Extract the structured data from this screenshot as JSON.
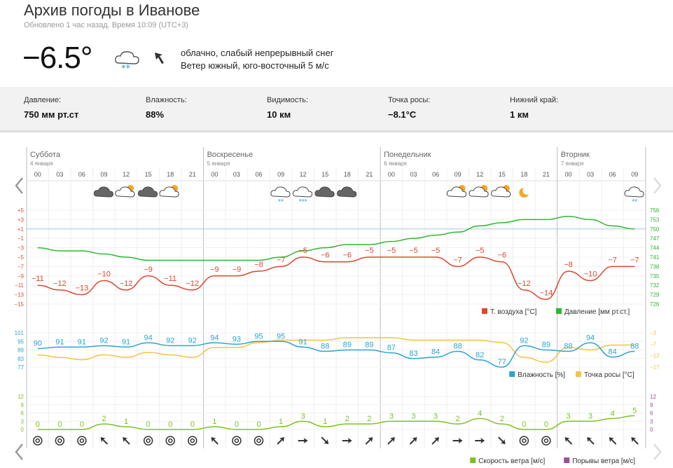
{
  "header": {
    "title": "Архив погоды в Иванове",
    "updated": "Обновлено 1 час назад. Время 10:09 (UTC+3)"
  },
  "current": {
    "temperature": "−6.5°",
    "icon": "cloud-snow-icon",
    "wind_icon": "arrow-northwest-icon",
    "condition": "облачно, слабый непрерывный снег",
    "wind": "Ветер южный, юго-восточный 5 м/с"
  },
  "stats": [
    {
      "label": "Давление:",
      "value": "750 мм рт.ст"
    },
    {
      "label": "Влажность:",
      "value": "88%"
    },
    {
      "label": "Видимость:",
      "value": "10 км"
    },
    {
      "label": "Точка росы:",
      "value": "−8.1°C"
    },
    {
      "label": "Нижний край:",
      "value": "1 км"
    }
  ],
  "days": [
    {
      "name": "Суббота",
      "date": "4 января"
    },
    {
      "name": "Воскресенье",
      "date": "5 января"
    },
    {
      "name": "Понедельник",
      "date": "6 января"
    },
    {
      "name": "Вторник",
      "date": "7 января"
    }
  ],
  "hours": [
    "00",
    "03",
    "06",
    "09",
    "12",
    "15",
    "18",
    "21",
    "00",
    "03",
    "06",
    "09",
    "12",
    "15",
    "18",
    "21",
    "00",
    "03",
    "06",
    "09",
    "12",
    "15",
    "18",
    "21",
    "00",
    "03",
    "06",
    "09"
  ],
  "weather_icons": [
    "",
    "",
    "",
    "cloud",
    "cloud-sun",
    "cloud",
    "cloud-sun",
    "",
    "",
    "",
    "",
    "cloud-snow",
    "cloud-snow-heavy",
    "cloud",
    "cloud",
    "",
    "",
    "",
    "",
    "cloud-sun",
    "cloud-sun",
    "cloud-sun",
    "moon",
    "",
    "",
    "",
    "",
    "cloud-snow"
  ],
  "colors": {
    "temperature": "#e0452d",
    "pressure": "#2db82d",
    "humidity": "#2ba3d5",
    "dew_point": "#f5c342",
    "wind_speed": "#7dc11d",
    "gusts": "#9b4f9b"
  },
  "legends": {
    "temp_chart": [
      "Т. воздуха [°C]",
      "Давление [мм рт.ст.]"
    ],
    "humidity_chart": [
      "Влажность [%]",
      "Точка росы [°C]"
    ],
    "wind_chart": [
      "Скорость ветра [м/с]",
      "Порывы ветра [м/с]"
    ]
  },
  "chart_data": [
    {
      "type": "line",
      "name": "temperature_pressure",
      "x": [
        "00",
        "03",
        "06",
        "09",
        "12",
        "15",
        "18",
        "21",
        "00",
        "03",
        "06",
        "09",
        "12",
        "15",
        "18",
        "21",
        "00",
        "03",
        "06",
        "09",
        "12",
        "15",
        "18",
        "21",
        "00",
        "03",
        "06",
        "09"
      ],
      "series": [
        {
          "name": "Т. воздуха [°C]",
          "values": [
            -11,
            -12,
            -13,
            -10,
            -12,
            -9,
            -11,
            -12,
            -9,
            -9,
            -8,
            -7,
            -5,
            -6,
            -6,
            -5,
            -5,
            -5,
            -5,
            -7,
            -5,
            -6,
            -12,
            -14,
            -8,
            -10,
            -7,
            -7
          ]
        },
        {
          "name": "Давление [мм рт.ст.]",
          "values": [
            744,
            743,
            743,
            742,
            741,
            740,
            740,
            740,
            740,
            740,
            740,
            741,
            743,
            744,
            745,
            745,
            746,
            747,
            748,
            749,
            751,
            752,
            753,
            753,
            754,
            753,
            751,
            750
          ]
        }
      ],
      "y_left_ticks": [
        "+5",
        "+3",
        "+1",
        "−1",
        "−3",
        "−5",
        "−7",
        "−9",
        "−11",
        "−13",
        "−15"
      ],
      "y_right_ticks": [
        "756",
        "753",
        "750",
        "747",
        "744",
        "741",
        "738",
        "735",
        "732",
        "729",
        "726"
      ],
      "ylim_left": [
        -15,
        5
      ],
      "ylim_right": [
        726,
        756
      ]
    },
    {
      "type": "line",
      "name": "humidity_dewpoint",
      "x": [
        "00",
        "03",
        "06",
        "09",
        "12",
        "15",
        "18",
        "21",
        "00",
        "03",
        "06",
        "09",
        "12",
        "15",
        "18",
        "21",
        "00",
        "03",
        "06",
        "09",
        "12",
        "15",
        "18",
        "21",
        "00",
        "03",
        "06",
        "09"
      ],
      "series": [
        {
          "name": "Влажность [%]",
          "values": [
            90,
            91,
            91,
            92,
            91,
            94,
            92,
            92,
            94,
            93,
            95,
            95,
            91,
            88,
            89,
            89,
            87,
            83,
            84,
            88,
            82,
            77,
            92,
            89,
            88,
            94,
            84,
            88
          ]
        },
        {
          "name": "Точка росы [°C]",
          "values": [
            -12,
            -13,
            -14,
            -12,
            -13,
            -11,
            -12,
            -13,
            -9,
            -9,
            -7,
            -6,
            -6,
            -6,
            -5,
            -5,
            -5,
            -6,
            -6,
            -6,
            -6,
            -7,
            -13,
            -15,
            -9,
            -10,
            -8,
            -8
          ]
        }
      ],
      "y_left_ticks": [
        "101",
        "95",
        "89",
        "83",
        "77"
      ],
      "y_right_ticks": [
        "−3",
        "−7",
        "−12",
        "−17"
      ],
      "ylim_left": [
        77,
        101
      ],
      "ylim_right": [
        -17,
        -3
      ]
    },
    {
      "type": "line",
      "name": "wind",
      "x": [
        "00",
        "03",
        "06",
        "09",
        "12",
        "15",
        "18",
        "21",
        "00",
        "03",
        "06",
        "09",
        "12",
        "15",
        "18",
        "21",
        "00",
        "03",
        "06",
        "09",
        "12",
        "15",
        "18",
        "21",
        "00",
        "03",
        "06",
        "09"
      ],
      "series": [
        {
          "name": "Скорость ветра [м/с]",
          "values": [
            0,
            0,
            0,
            2,
            1,
            0,
            0,
            0,
            1,
            0,
            0,
            1,
            3,
            1,
            2,
            2,
            3,
            3,
            3,
            2,
            4,
            2,
            0,
            0,
            3,
            3,
            4,
            5
          ]
        }
      ],
      "wind_dirs": [
        "calm",
        "calm",
        "calm",
        "nw",
        "nw",
        "calm",
        "calm",
        "calm",
        "nw",
        "calm",
        "calm",
        "ne",
        "e",
        "se",
        "e",
        "ne",
        "ne",
        "ne",
        "ne",
        "e",
        "e",
        "se",
        "calm",
        "calm",
        "nw",
        "nw",
        "nw",
        "nw"
      ],
      "y_left_ticks": [
        "12",
        "9",
        "6",
        "3",
        "0"
      ],
      "y_right_ticks": [
        "12",
        "9",
        "6",
        "3",
        "0"
      ],
      "ylim": [
        0,
        12
      ]
    }
  ]
}
